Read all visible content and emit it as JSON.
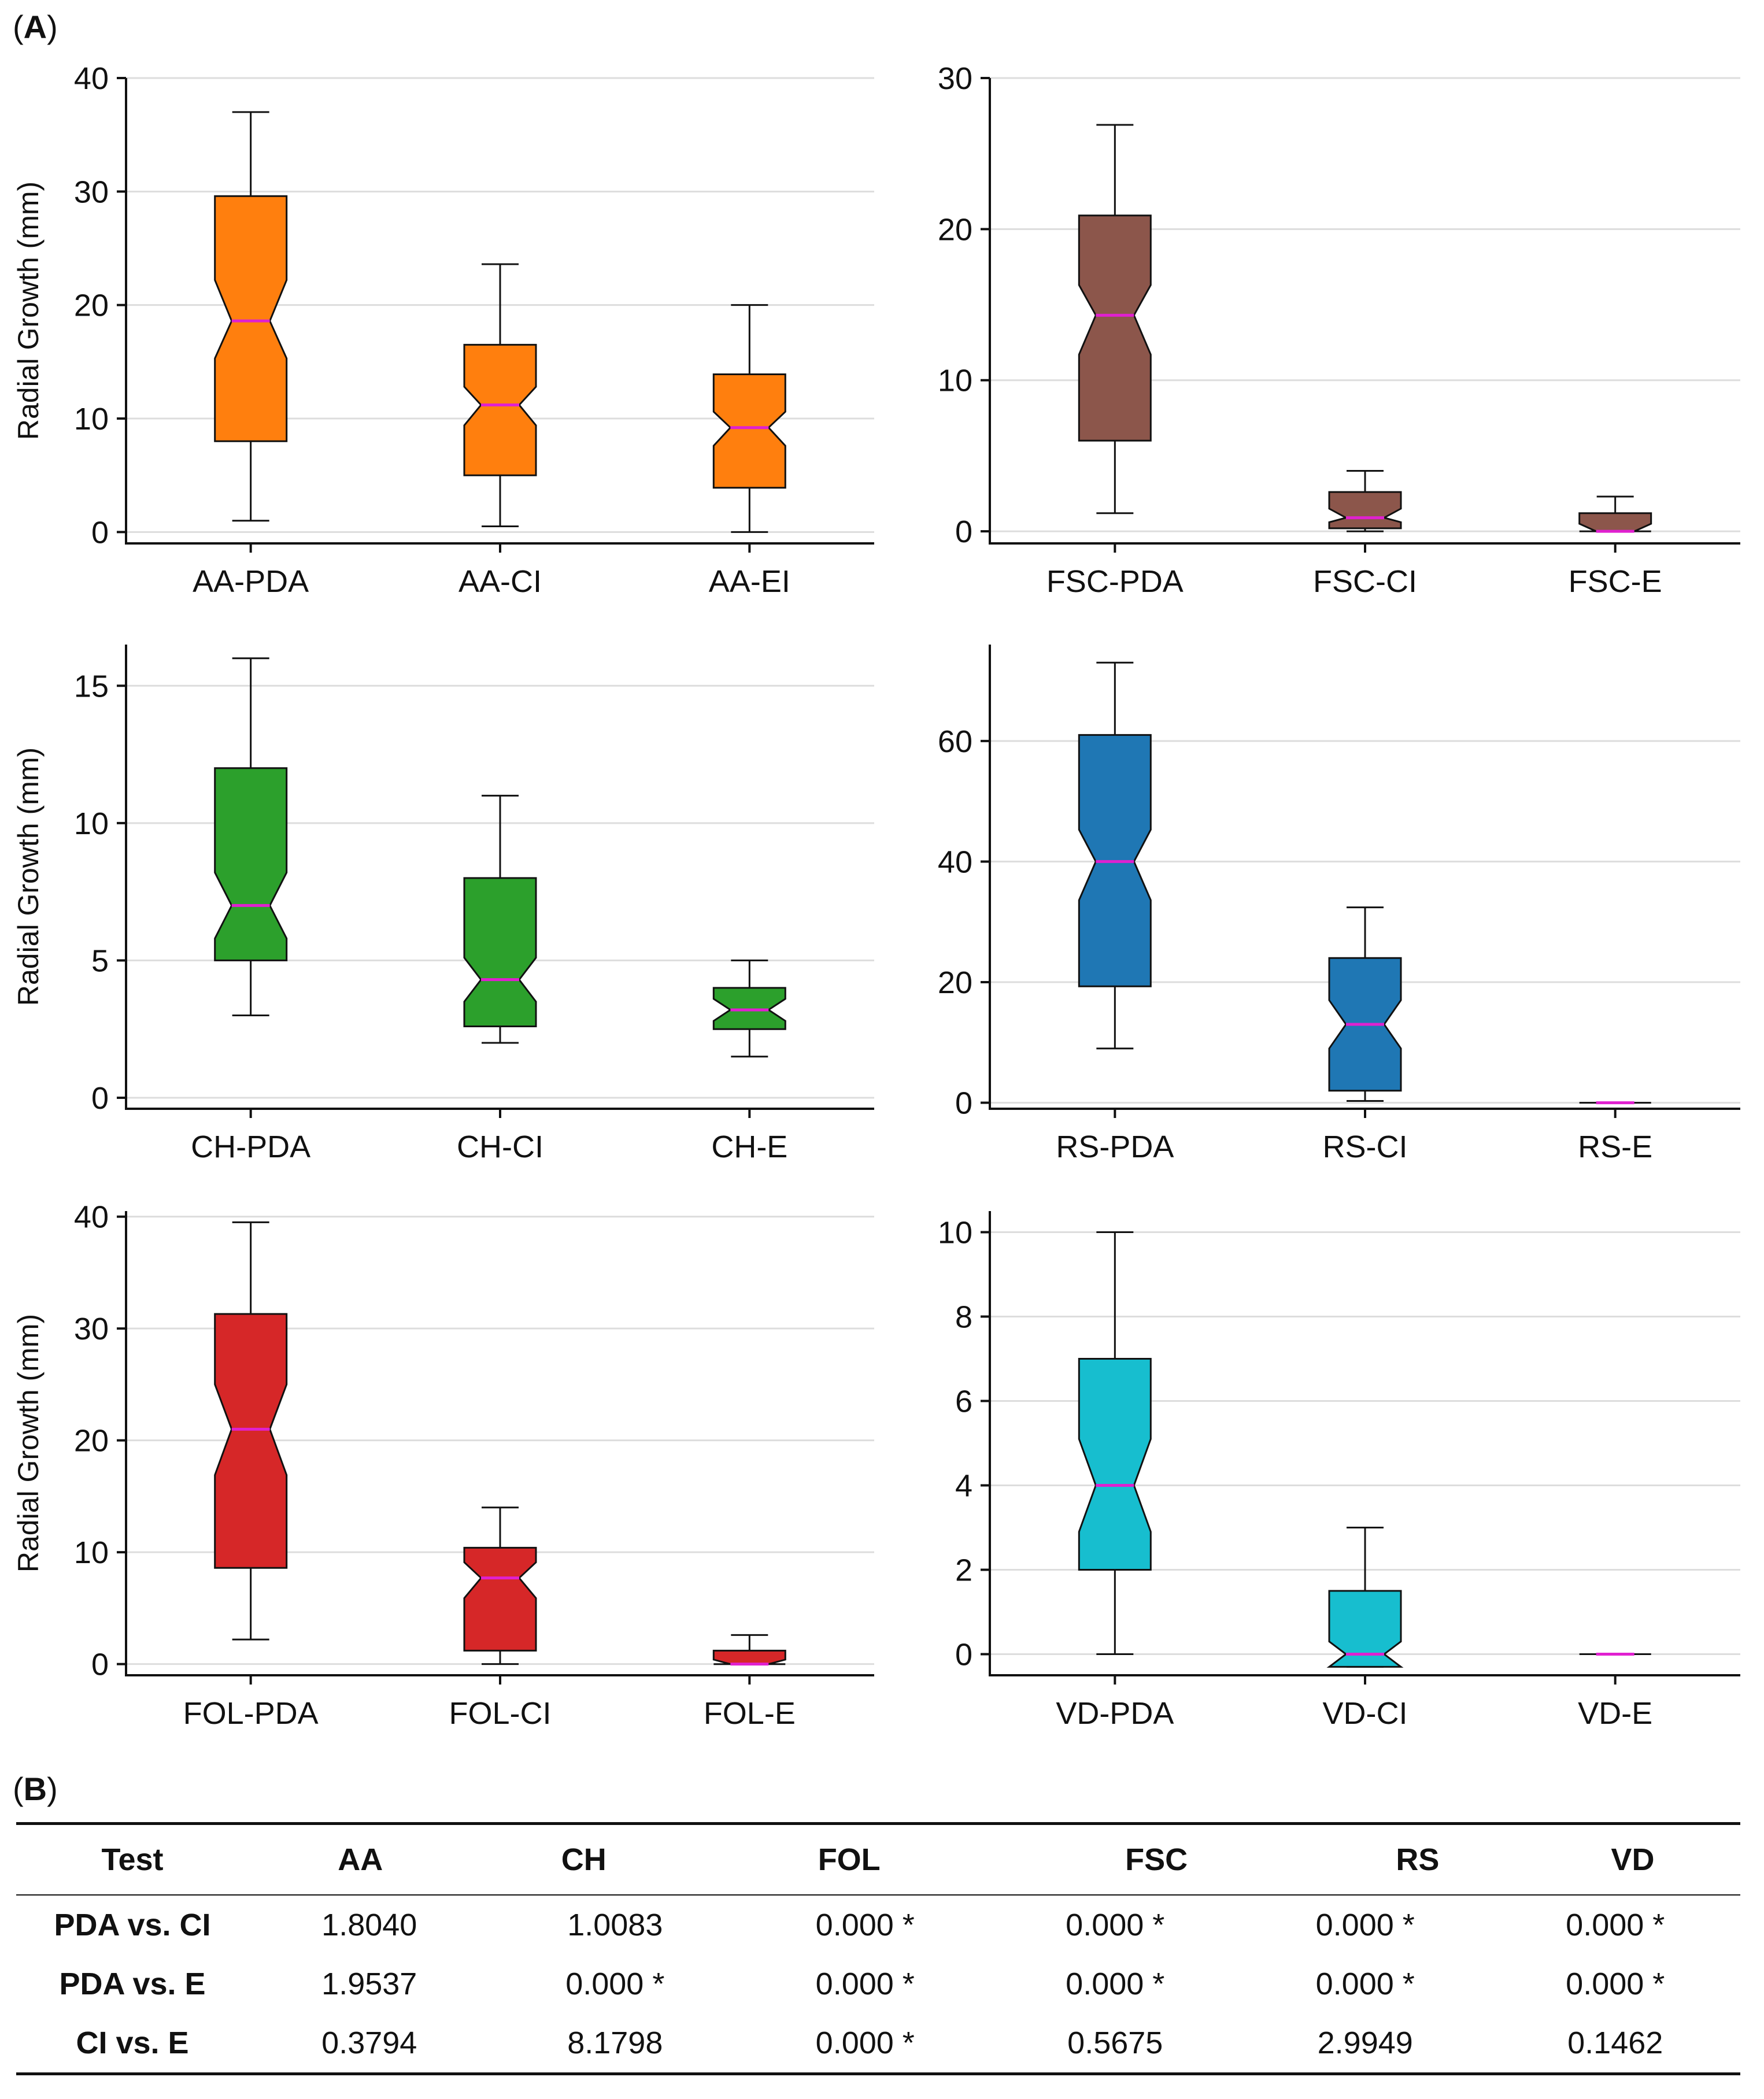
{
  "panel_labels": {
    "a": "A",
    "b": "B"
  },
  "style": {
    "median_color": "#e020d0",
    "outline_color": "#111111",
    "grid_color": "#dddddd"
  },
  "chart_data": [
    {
      "type": "notched-boxplot",
      "ylabel": "Radial Growth (mm)",
      "ylim": [
        -1,
        40
      ],
      "yticks": [
        0,
        10,
        20,
        30,
        40
      ],
      "color": "#ff7f0e",
      "categories": [
        "AA-PDA",
        "AA-CI",
        "AA-EI"
      ],
      "boxes": [
        {
          "whislo": 1,
          "q1": 8,
          "notchlo": 15.3,
          "med": 18.6,
          "notchhi": 22.2,
          "q3": 29.6,
          "whishi": 37
        },
        {
          "whislo": 0.5,
          "q1": 5,
          "notchlo": 9.4,
          "med": 11.2,
          "notchhi": 12.8,
          "q3": 16.5,
          "whishi": 23.6
        },
        {
          "whislo": 0,
          "q1": 3.9,
          "notchlo": 7.6,
          "med": 9.2,
          "notchhi": 10.6,
          "q3": 13.9,
          "whishi": 20
        }
      ]
    },
    {
      "type": "notched-boxplot",
      "ylabel": "",
      "ylim": [
        -0.8,
        30
      ],
      "yticks": [
        0,
        10,
        20,
        30
      ],
      "color": "#8c564b",
      "categories": [
        "FSC-PDA",
        "FSC-CI",
        "FSC-E"
      ],
      "boxes": [
        {
          "whislo": 1.2,
          "q1": 6,
          "notchlo": 11.7,
          "med": 14.3,
          "notchhi": 16.3,
          "q3": 20.9,
          "whishi": 26.9
        },
        {
          "whislo": 0,
          "q1": 0.2,
          "notchlo": 0.6,
          "med": 0.9,
          "notchhi": 1.5,
          "q3": 2.6,
          "whishi": 4
        },
        {
          "whislo": 0,
          "q1": 0,
          "notchlo": 0,
          "med": 0,
          "notchhi": 0.5,
          "q3": 1.2,
          "whishi": 2.3
        }
      ]
    },
    {
      "type": "notched-boxplot",
      "ylabel": "Radial Growth (mm)",
      "ylim": [
        -0.4,
        16.5
      ],
      "yticks": [
        0,
        5,
        10,
        15
      ],
      "color": "#2ca02c",
      "categories": [
        "CH-PDA",
        "CH-CI",
        "CH-E"
      ],
      "boxes": [
        {
          "whislo": 3,
          "q1": 5,
          "notchlo": 5.8,
          "med": 7,
          "notchhi": 8.2,
          "q3": 12,
          "whishi": 16
        },
        {
          "whislo": 2,
          "q1": 2.6,
          "notchlo": 3.5,
          "med": 4.3,
          "notchhi": 5.1,
          "q3": 8,
          "whishi": 11
        },
        {
          "whislo": 1.5,
          "q1": 2.5,
          "notchlo": 2.8,
          "med": 3.2,
          "notchhi": 3.6,
          "q3": 4,
          "whishi": 5
        }
      ]
    },
    {
      "type": "notched-boxplot",
      "ylabel": "",
      "ylim": [
        -1,
        76
      ],
      "yticks": [
        0,
        20,
        40,
        60
      ],
      "color": "#1f77b4",
      "categories": [
        "RS-PDA",
        "RS-CI",
        "RS-E"
      ],
      "boxes": [
        {
          "whislo": 9,
          "q1": 19.3,
          "notchlo": 33.6,
          "med": 40,
          "notchhi": 45.3,
          "q3": 61,
          "whishi": 73
        },
        {
          "whislo": 0.3,
          "q1": 2,
          "notchlo": 9,
          "med": 13,
          "notchhi": 17,
          "q3": 24,
          "whishi": 32.4
        },
        {
          "whislo": 0,
          "q1": 0,
          "notchlo": 0,
          "med": 0,
          "notchhi": 0,
          "q3": 0,
          "whishi": 0
        }
      ]
    },
    {
      "type": "notched-boxplot",
      "ylabel": "Radial Growth (mm)",
      "ylim": [
        -1,
        40.5
      ],
      "yticks": [
        0,
        10,
        20,
        30,
        40
      ],
      "color": "#d62728",
      "categories": [
        "FOL-PDA",
        "FOL-CI",
        "FOL-E"
      ],
      "boxes": [
        {
          "whislo": 2.2,
          "q1": 8.6,
          "notchlo": 16.9,
          "med": 21,
          "notchhi": 25,
          "q3": 31.3,
          "whishi": 39.5
        },
        {
          "whislo": 0,
          "q1": 1.2,
          "notchlo": 5.9,
          "med": 7.7,
          "notchhi": 9.1,
          "q3": 10.4,
          "whishi": 14
        },
        {
          "whislo": 0,
          "q1": 0,
          "notchlo": 0,
          "med": 0,
          "notchhi": 0.4,
          "q3": 1.2,
          "whishi": 2.6
        }
      ]
    },
    {
      "type": "notched-boxplot",
      "ylabel": "",
      "ylim": [
        -0.5,
        10.5
      ],
      "yticks": [
        0,
        2,
        4,
        6,
        8,
        10
      ],
      "color": "#17becf",
      "categories": [
        "VD-PDA",
        "VD-CI",
        "VD-E"
      ],
      "boxes": [
        {
          "whislo": 0,
          "q1": 2,
          "notchlo": 2.9,
          "med": 4,
          "notchhi": 5.1,
          "q3": 7,
          "whishi": 10
        },
        {
          "whislo": -0.3,
          "q1": -0.3,
          "notchlo": -0.3,
          "med": 0,
          "notchhi": 0.3,
          "q3": 1.5,
          "whishi": 3
        },
        {
          "whislo": 0,
          "q1": 0,
          "notchlo": 0,
          "med": 0,
          "notchhi": 0,
          "q3": 0,
          "whishi": 0
        }
      ]
    }
  ],
  "table": {
    "headers": [
      "Test",
      "AA",
      "CH",
      "FOL",
      "FSC",
      "RS",
      "VD"
    ],
    "rows": [
      [
        "PDA vs. CI",
        "1.8040",
        "1.0083",
        "0.000 *",
        "0.000 *",
        "0.000 *",
        "0.000 *"
      ],
      [
        "PDA vs. E",
        "1.9537",
        "0.000 *",
        "0.000 *",
        "0.000 *",
        "0.000 *",
        "0.000 *"
      ],
      [
        "CI vs. E",
        "0.3794",
        "8.1798",
        "0.000 *",
        "0.5675",
        "2.9949",
        "0.1462"
      ]
    ]
  }
}
